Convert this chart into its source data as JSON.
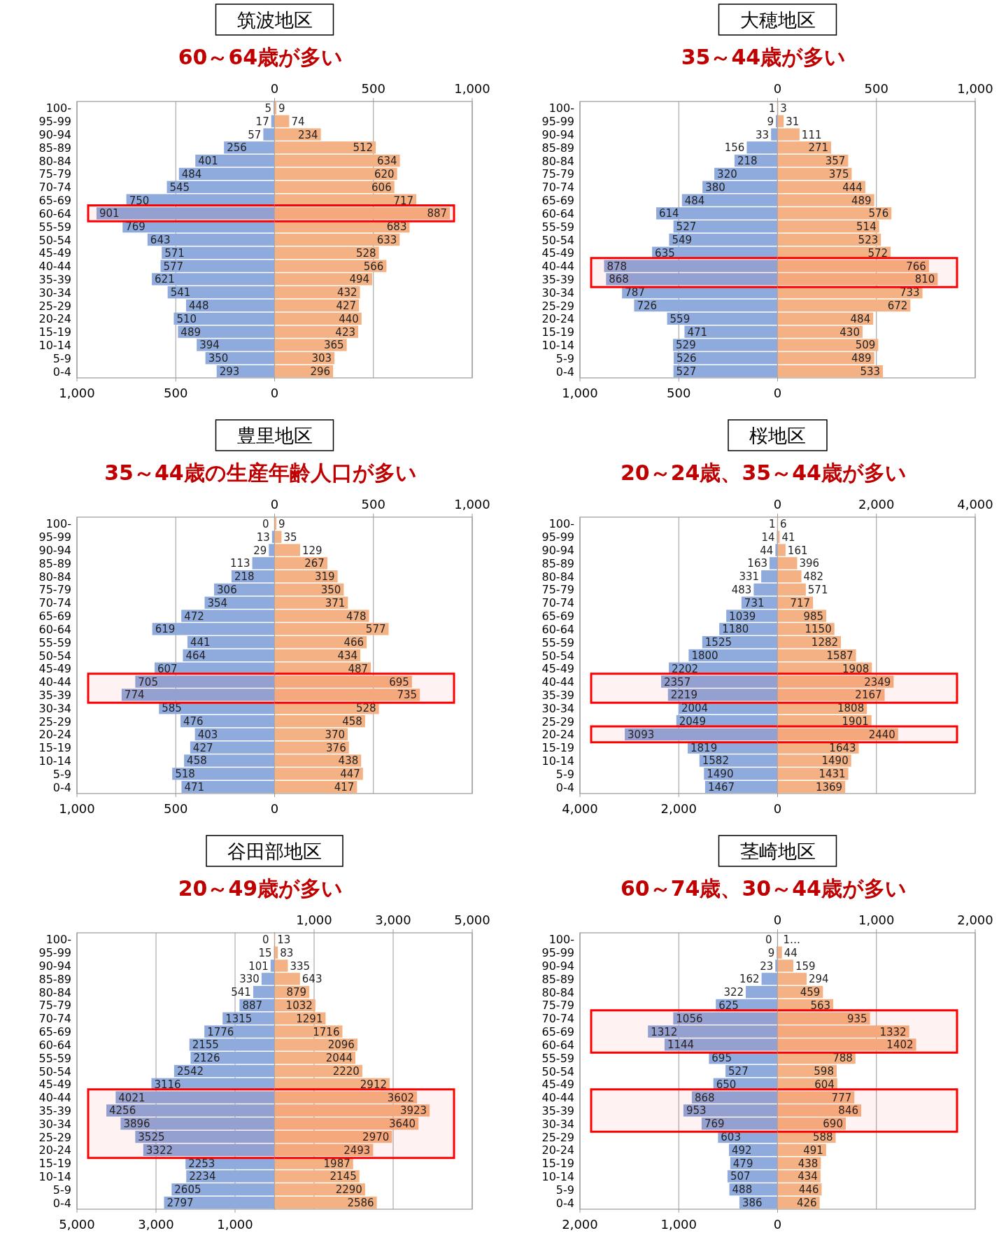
{
  "chart_data": [
    {
      "type": "bar",
      "orientation": "horizontal",
      "title": "筑波地区",
      "subtitle": "60～64歳が多い",
      "categories": [
        "100-",
        "95-99",
        "90-94",
        "85-89",
        "80-84",
        "75-79",
        "70-74",
        "65-69",
        "60-64",
        "55-59",
        "50-54",
        "45-49",
        "40-44",
        "35-39",
        "30-34",
        "25-29",
        "20-24",
        "15-19",
        "10-14",
        "5-9",
        "0-4"
      ],
      "series": [
        {
          "color": "#8faadc",
          "values": [
            5,
            17,
            57,
            256,
            401,
            484,
            545,
            750,
            901,
            769,
            643,
            571,
            577,
            621,
            541,
            448,
            510,
            489,
            394,
            350,
            293
          ]
        }
      ],
      "data_labels": true,
      "xlim": [
        1000,
        0
      ],
      "xticks": [
        {
          "value": 1000,
          "label": "1,000"
        },
        {
          "value": 500,
          "label": "500"
        },
        {
          "value": 0,
          "label": "0"
        }
      ],
      "grid": "x",
      "bands": [
        {
          "axis": "y",
          "from": "60-64",
          "to": "60-64",
          "color": "#ff0000"
        }
      ]
    },
    {
      "type": "bar",
      "orientation": "horizontal",
      "categories": [
        "100-",
        "95-99",
        "90-94",
        "85-89",
        "80-84",
        "75-79",
        "70-74",
        "65-69",
        "60-64",
        "55-59",
        "50-54",
        "45-49",
        "40-44",
        "35-39",
        "30-34",
        "25-29",
        "20-24",
        "15-19",
        "10-14",
        "5-9",
        "0-4"
      ],
      "tick_labels": "x",
      "series": [
        {
          "color": "#f4b183",
          "values": [
            9,
            74,
            234,
            512,
            634,
            620,
            606,
            717,
            887,
            683,
            633,
            528,
            566,
            494,
            432,
            427,
            440,
            423,
            365,
            303,
            296
          ]
        }
      ],
      "data_labels": true,
      "xlim": [
        0,
        1000
      ],
      "xticks": [
        {
          "value": 0,
          "label": "0"
        },
        {
          "value": 500,
          "label": "500"
        },
        {
          "value": 1000,
          "label": "1,000"
        }
      ],
      "grid": "x",
      "bands": [
        {
          "axis": "y",
          "from": "60-64",
          "to": "60-64",
          "color": "#ff0000"
        }
      ]
    },
    {
      "type": "bar",
      "orientation": "horizontal",
      "title": "大穂地区",
      "subtitle": "35～44歳が多い",
      "categories": [
        "100-",
        "95-99",
        "90-94",
        "85-89",
        "80-84",
        "75-79",
        "70-74",
        "65-69",
        "60-64",
        "55-59",
        "50-54",
        "45-49",
        "40-44",
        "35-39",
        "30-34",
        "25-29",
        "20-24",
        "15-19",
        "10-14",
        "5-9",
        "0-4"
      ],
      "series": [
        {
          "color": "#8faadc",
          "values": [
            1,
            9,
            33,
            156,
            218,
            320,
            380,
            484,
            614,
            527,
            549,
            635,
            878,
            868,
            787,
            726,
            559,
            471,
            529,
            526,
            527
          ]
        }
      ],
      "data_labels": true,
      "xlim": [
        1000,
        0
      ],
      "xticks": [
        {
          "value": 1000,
          "label": "1,000"
        },
        {
          "value": 500,
          "label": "500"
        },
        {
          "value": 0,
          "label": "0"
        }
      ],
      "grid": "x",
      "bands": [
        {
          "axis": "y",
          "from": "40-44",
          "to": "35-39",
          "color": "#ff0000"
        }
      ]
    },
    {
      "type": "bar",
      "orientation": "horizontal",
      "categories": [
        "100-",
        "95-99",
        "90-94",
        "85-89",
        "80-84",
        "75-79",
        "70-74",
        "65-69",
        "60-64",
        "55-59",
        "50-54",
        "45-49",
        "40-44",
        "35-39",
        "30-34",
        "25-29",
        "20-24",
        "15-19",
        "10-14",
        "5-9",
        "0-4"
      ],
      "tick_labels": "x",
      "series": [
        {
          "color": "#f4b183",
          "values": [
            3,
            31,
            111,
            271,
            357,
            375,
            444,
            489,
            576,
            514,
            523,
            572,
            766,
            810,
            733,
            672,
            484,
            430,
            509,
            489,
            533
          ]
        }
      ],
      "data_labels": true,
      "xlim": [
        0,
        1000
      ],
      "xticks": [
        {
          "value": 0,
          "label": "0"
        },
        {
          "value": 500,
          "label": "500"
        },
        {
          "value": 1000,
          "label": "1,000"
        }
      ],
      "grid": "x",
      "bands": [
        {
          "axis": "y",
          "from": "40-44",
          "to": "35-39",
          "color": "#ff0000"
        }
      ]
    },
    {
      "type": "bar",
      "orientation": "horizontal",
      "title": "豊里地区",
      "subtitle": "35～44歳の生産年齢人口が多い",
      "categories": [
        "100-",
        "95-99",
        "90-94",
        "85-89",
        "80-84",
        "75-79",
        "70-74",
        "65-69",
        "60-64",
        "55-59",
        "50-54",
        "45-49",
        "40-44",
        "35-39",
        "30-34",
        "25-29",
        "20-24",
        "15-19",
        "10-14",
        "5-9",
        "0-4"
      ],
      "series": [
        {
          "color": "#8faadc",
          "values": [
            0,
            13,
            29,
            113,
            218,
            306,
            354,
            472,
            619,
            441,
            464,
            607,
            705,
            774,
            585,
            476,
            403,
            427,
            458,
            518,
            471
          ]
        }
      ],
      "data_labels": true,
      "xlim": [
        1000,
        0
      ],
      "xticks": [
        {
          "value": 1000,
          "label": "1,000"
        },
        {
          "value": 500,
          "label": "500"
        },
        {
          "value": 0,
          "label": "0"
        }
      ],
      "grid": "x",
      "bands": [
        {
          "axis": "y",
          "from": "40-44",
          "to": "35-39",
          "color": "#ff0000"
        }
      ]
    },
    {
      "type": "bar",
      "orientation": "horizontal",
      "categories": [
        "100-",
        "95-99",
        "90-94",
        "85-89",
        "80-84",
        "75-79",
        "70-74",
        "65-69",
        "60-64",
        "55-59",
        "50-54",
        "45-49",
        "40-44",
        "35-39",
        "30-34",
        "25-29",
        "20-24",
        "15-19",
        "10-14",
        "5-9",
        "0-4"
      ],
      "tick_labels": "x",
      "series": [
        {
          "color": "#f4b183",
          "values": [
            9,
            35,
            129,
            267,
            319,
            350,
            371,
            478,
            577,
            466,
            434,
            487,
            695,
            735,
            528,
            458,
            370,
            376,
            438,
            447,
            417
          ]
        }
      ],
      "data_labels": true,
      "xlim": [
        0,
        1000
      ],
      "xticks": [
        {
          "value": 0,
          "label": "0"
        },
        {
          "value": 500,
          "label": "500"
        },
        {
          "value": 1000,
          "label": "1,000"
        }
      ],
      "grid": "x",
      "bands": [
        {
          "axis": "y",
          "from": "40-44",
          "to": "35-39",
          "color": "#ff0000"
        }
      ]
    },
    {
      "type": "bar",
      "orientation": "horizontal",
      "title": "桜地区",
      "subtitle": "20～24歳、35～44歳が多い",
      "categories": [
        "100-",
        "95-99",
        "90-94",
        "85-89",
        "80-84",
        "75-79",
        "70-74",
        "65-69",
        "60-64",
        "55-59",
        "50-54",
        "45-49",
        "40-44",
        "35-39",
        "30-34",
        "25-29",
        "20-24",
        "15-19",
        "10-14",
        "5-9",
        "0-4"
      ],
      "series": [
        {
          "color": "#8faadc",
          "values": [
            1,
            14,
            44,
            163,
            331,
            483,
            731,
            1039,
            1180,
            1525,
            1800,
            2202,
            2357,
            2219,
            2004,
            2049,
            3093,
            1819,
            1582,
            1490,
            1467
          ]
        }
      ],
      "data_labels": true,
      "xlim": [
        4000,
        0
      ],
      "xticks": [
        {
          "value": 4000,
          "label": "4,000"
        },
        {
          "value": 2000,
          "label": "2,000"
        },
        {
          "value": 0,
          "label": "0"
        }
      ],
      "grid": "x",
      "bands": [
        {
          "axis": "y",
          "from": "40-44",
          "to": "35-39",
          "color": "#ff0000"
        },
        {
          "axis": "y",
          "from": "20-24",
          "to": "20-24",
          "color": "#ff0000"
        }
      ]
    },
    {
      "type": "bar",
      "orientation": "horizontal",
      "categories": [
        "100-",
        "95-99",
        "90-94",
        "85-89",
        "80-84",
        "75-79",
        "70-74",
        "65-69",
        "60-64",
        "55-59",
        "50-54",
        "45-49",
        "40-44",
        "35-39",
        "30-34",
        "25-29",
        "20-24",
        "15-19",
        "10-14",
        "5-9",
        "0-4"
      ],
      "tick_labels": "x",
      "series": [
        {
          "color": "#f4b183",
          "values": [
            6,
            41,
            161,
            396,
            482,
            571,
            717,
            985,
            1150,
            1282,
            1587,
            1908,
            2349,
            2167,
            1808,
            1901,
            2440,
            1643,
            1490,
            1431,
            1369
          ]
        }
      ],
      "data_labels": true,
      "xlim": [
        0,
        4000
      ],
      "xticks": [
        {
          "value": 0,
          "label": "0"
        },
        {
          "value": 2000,
          "label": "2,000"
        },
        {
          "value": 4000,
          "label": "4,000"
        }
      ],
      "grid": "x",
      "bands": [
        {
          "axis": "y",
          "from": "40-44",
          "to": "35-39",
          "color": "#ff0000"
        },
        {
          "axis": "y",
          "from": "20-24",
          "to": "20-24",
          "color": "#ff0000"
        }
      ]
    },
    {
      "type": "bar",
      "orientation": "horizontal",
      "title": "谷田部地区",
      "subtitle": "20～49歳が多い",
      "categories": [
        "100-",
        "95-99",
        "90-94",
        "85-89",
        "80-84",
        "75-79",
        "70-74",
        "65-69",
        "60-64",
        "55-59",
        "50-54",
        "45-49",
        "40-44",
        "35-39",
        "30-34",
        "25-29",
        "20-24",
        "15-19",
        "10-14",
        "5-9",
        "0-4"
      ],
      "series": [
        {
          "color": "#8faadc",
          "values": [
            0,
            15,
            101,
            330,
            541,
            887,
            1315,
            1776,
            2155,
            2126,
            2542,
            3116,
            4021,
            4256,
            3896,
            3525,
            3322,
            2253,
            2234,
            2605,
            2797
          ]
        }
      ],
      "data_labels": true,
      "xlim": [
        5000,
        0
      ],
      "xticks": [
        {
          "value": 5000,
          "label": "5,000"
        },
        {
          "value": 3000,
          "label": "3,000"
        },
        {
          "value": 1000,
          "label": "1,000"
        }
      ],
      "grid": "x",
      "bands": [
        {
          "axis": "y",
          "from": "40-44",
          "to": "20-24",
          "color": "#ff0000"
        }
      ]
    },
    {
      "type": "bar",
      "orientation": "horizontal",
      "categories": [
        "100-",
        "95-99",
        "90-94",
        "85-89",
        "80-84",
        "75-79",
        "70-74",
        "65-69",
        "60-64",
        "55-59",
        "50-54",
        "45-49",
        "40-44",
        "35-39",
        "30-34",
        "25-29",
        "20-24",
        "15-19",
        "10-14",
        "5-9",
        "0-4"
      ],
      "tick_labels": "x",
      "series": [
        {
          "color": "#f4b183",
          "values": [
            13,
            83,
            335,
            643,
            879,
            1032,
            1291,
            1716,
            2096,
            2044,
            2220,
            2912,
            3602,
            3923,
            3640,
            2970,
            2493,
            1987,
            2145,
            2290,
            2586
          ]
        }
      ],
      "data_labels": true,
      "xlim": [
        0,
        5000
      ],
      "xticks": [
        {
          "value": 1000,
          "label": "1,000"
        },
        {
          "value": 3000,
          "label": "3,000"
        },
        {
          "value": 5000,
          "label": "5,000"
        }
      ],
      "grid": "x",
      "bands": [
        {
          "axis": "y",
          "from": "40-44",
          "to": "20-24",
          "color": "#ff0000"
        }
      ]
    },
    {
      "type": "bar",
      "orientation": "horizontal",
      "title": "茎崎地区",
      "subtitle": "60～74歳、30～44歳が多い",
      "categories": [
        "100-",
        "95-99",
        "90-94",
        "85-89",
        "80-84",
        "75-79",
        "70-74",
        "65-69",
        "60-64",
        "55-59",
        "50-54",
        "45-49",
        "40-44",
        "35-39",
        "30-34",
        "25-29",
        "20-24",
        "15-19",
        "10-14",
        "5-9",
        "0-4"
      ],
      "series": [
        {
          "color": "#8faadc",
          "values": [
            0,
            9,
            23,
            162,
            322,
            625,
            1056,
            1312,
            1144,
            695,
            527,
            650,
            868,
            953,
            769,
            603,
            492,
            479,
            507,
            488,
            386
          ]
        }
      ],
      "data_labels": true,
      "xlim": [
        2000,
        0
      ],
      "xticks": [
        {
          "value": 2000,
          "label": "2,000"
        },
        {
          "value": 1000,
          "label": "1,000"
        },
        {
          "value": 0,
          "label": "0"
        }
      ],
      "grid": "x",
      "bands": [
        {
          "axis": "y",
          "from": "70-74",
          "to": "60-64",
          "color": "#ff0000"
        },
        {
          "axis": "y",
          "from": "40-44",
          "to": "30-34",
          "color": "#ff0000"
        }
      ]
    },
    {
      "type": "bar",
      "orientation": "horizontal",
      "categories": [
        "100-",
        "95-99",
        "90-94",
        "85-89",
        "80-84",
        "75-79",
        "70-74",
        "65-69",
        "60-64",
        "55-59",
        "50-54",
        "45-49",
        "40-44",
        "35-39",
        "30-34",
        "25-29",
        "20-24",
        "15-19",
        "10-14",
        "5-9",
        "0-4"
      ],
      "tick_labels": "x",
      "series": [
        {
          "color": "#f4b183",
          "values": [
            null,
            44,
            159,
            294,
            459,
            563,
            935,
            1332,
            1402,
            788,
            598,
            604,
            777,
            846,
            690,
            588,
            491,
            438,
            434,
            446,
            426
          ],
          "value_labels": [
            "1…",
            "44",
            "159",
            "294",
            "459",
            "563",
            "935",
            "1332",
            "1402",
            "788",
            "598",
            "604",
            "777",
            "846",
            "690",
            "588",
            "491",
            "438",
            "434",
            "446",
            "426"
          ]
        }
      ],
      "xlim": [
        0,
        2000
      ],
      "xticks": [
        {
          "value": 0,
          "label": "0"
        },
        {
          "value": 1000,
          "label": "1,000"
        },
        {
          "value": 2000,
          "label": "2,000"
        }
      ],
      "grid": "x",
      "bands": [
        {
          "axis": "y",
          "from": "70-74",
          "to": "60-64",
          "color": "#ff0000"
        },
        {
          "axis": "y",
          "from": "40-44",
          "to": "30-34",
          "color": "#ff0000"
        }
      ]
    }
  ]
}
